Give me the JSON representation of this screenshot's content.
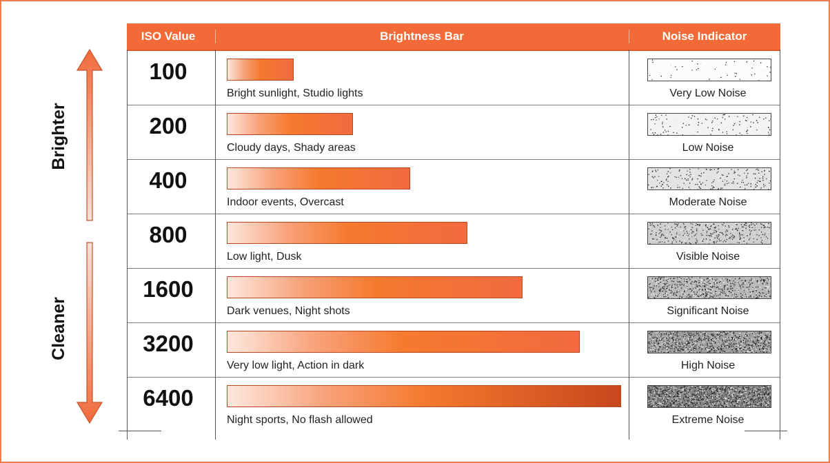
{
  "header": {
    "iso_col": "ISO Value",
    "bar_col": "Brightness Bar",
    "noise_col": "Noise Indicator"
  },
  "side": {
    "top_label": "Brighter",
    "bottom_label": "Cleaner"
  },
  "colors": {
    "accent": "#f26a37",
    "arrow": "#f07a50",
    "bar_dark": "#c8461c"
  },
  "rows": [
    {
      "iso": "100",
      "desc": "Bright sunlight, Studio lights",
      "noise_label": "Very Low Noise",
      "brightness": 0.17,
      "noise_level": 0.02
    },
    {
      "iso": "200",
      "desc": "Cloudy days, Shady areas",
      "noise_label": "Low Noise",
      "brightness": 0.32,
      "noise_level": 0.08
    },
    {
      "iso": "400",
      "desc": "Indoor events, Overcast",
      "noise_label": "Moderate Noise",
      "brightness": 0.465,
      "noise_level": 0.18
    },
    {
      "iso": "800",
      "desc": "Low light, Dusk",
      "noise_label": "Visible Noise",
      "brightness": 0.61,
      "noise_level": 0.32
    },
    {
      "iso": "1600",
      "desc": "Dark venues, Night shots",
      "noise_label": "Significant Noise",
      "brightness": 0.75,
      "noise_level": 0.48
    },
    {
      "iso": "3200",
      "desc": "Very low light, Action in dark",
      "noise_label": "High Noise",
      "brightness": 0.895,
      "noise_level": 0.65
    },
    {
      "iso": "6400",
      "desc": "Night sports, No flash allowed",
      "noise_label": "Extreme Noise",
      "brightness": 1.0,
      "noise_level": 0.82
    }
  ]
}
